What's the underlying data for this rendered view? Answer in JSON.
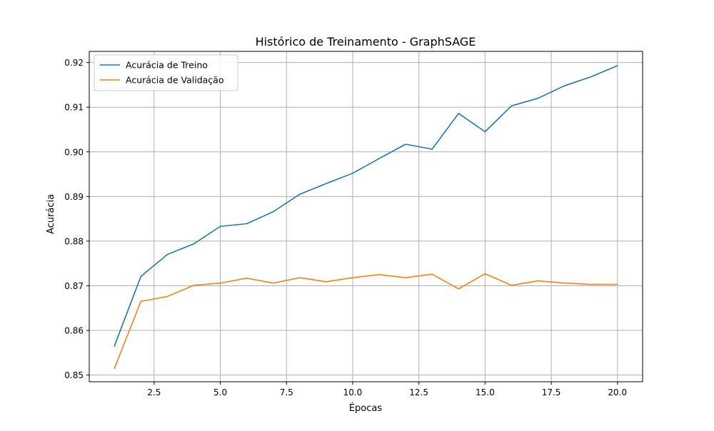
{
  "chart_data": {
    "type": "line",
    "title": "Histórico de Treinamento - GraphSAGE",
    "xlabel": "Épocas",
    "ylabel": "Acurácia",
    "xlim": [
      0.05,
      20.95
    ],
    "ylim": [
      0.8485,
      0.9225
    ],
    "xticks": [
      2.5,
      5.0,
      7.5,
      10.0,
      12.5,
      15.0,
      17.5,
      20.0
    ],
    "xtick_labels": [
      "2.5",
      "5.0",
      "7.5",
      "10.0",
      "12.5",
      "15.0",
      "17.5",
      "20.0"
    ],
    "yticks": [
      0.85,
      0.86,
      0.87,
      0.88,
      0.89,
      0.9,
      0.91,
      0.92
    ],
    "ytick_labels": [
      "0.85",
      "0.86",
      "0.87",
      "0.88",
      "0.89",
      "0.90",
      "0.91",
      "0.92"
    ],
    "grid": true,
    "legend_position": "top-left",
    "x": [
      1,
      2,
      3,
      4,
      5,
      6,
      7,
      8,
      9,
      10,
      11,
      12,
      13,
      14,
      15,
      16,
      17,
      18,
      19,
      20
    ],
    "series": [
      {
        "name": "Acurácia de Treino",
        "color": "#1f77b4",
        "values": [
          0.8565,
          0.8721,
          0.877,
          0.8794,
          0.8833,
          0.8839,
          0.8866,
          0.8905,
          0.8929,
          0.8952,
          0.8985,
          0.9017,
          0.9006,
          0.9086,
          0.9045,
          0.9103,
          0.912,
          0.9148,
          0.9168,
          0.9193
        ]
      },
      {
        "name": "Acurácia de Validação",
        "color": "#ff7f0e",
        "values": [
          0.8515,
          0.8665,
          0.8676,
          0.8701,
          0.8706,
          0.8717,
          0.8706,
          0.8718,
          0.8709,
          0.8718,
          0.8725,
          0.8718,
          0.8726,
          0.8693,
          0.8727,
          0.8701,
          0.8711,
          0.8706,
          0.8703,
          0.8703
        ]
      }
    ]
  }
}
